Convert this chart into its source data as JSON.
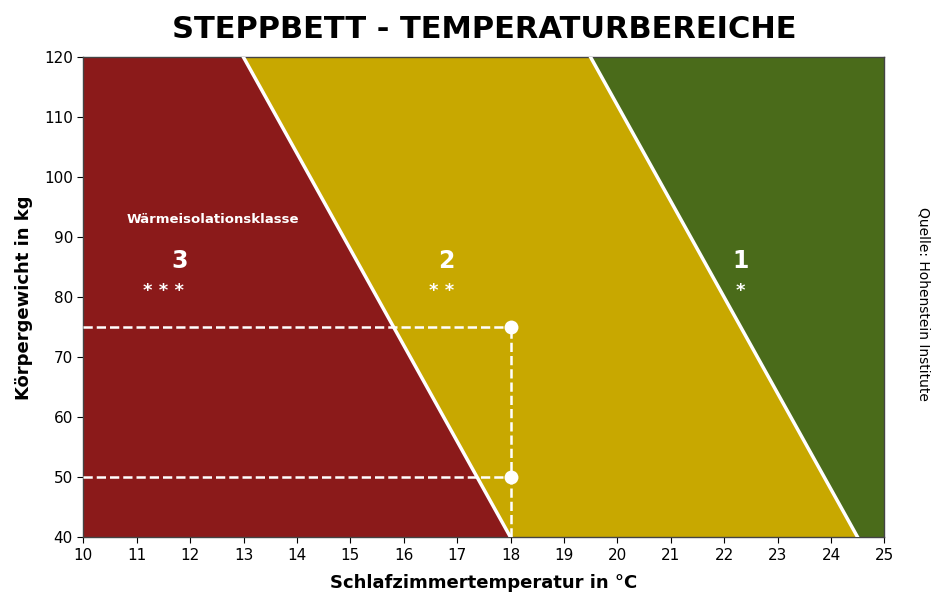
{
  "title": "STEPPBETT - TEMPERATURBEREICHE",
  "xlabel": "Schlafzimmertemperatur in °C",
  "ylabel": "Körpergewicht in kg",
  "right_label": "Quelle: Hohenstein Institute",
  "xlim": [
    10,
    25
  ],
  "ylim": [
    40,
    120
  ],
  "xticks": [
    10,
    11,
    12,
    13,
    14,
    15,
    16,
    17,
    18,
    19,
    20,
    21,
    22,
    23,
    24,
    25
  ],
  "yticks": [
    40,
    50,
    60,
    70,
    80,
    90,
    100,
    110,
    120
  ],
  "color_red": "#8B1A1A",
  "color_yellow": "#C8A800",
  "color_green": "#4A6B1A",
  "region_label": "Wärmeisolationsklasse",
  "class3_x": 11.8,
  "class3_y_num": 86,
  "class3_y_star": 81,
  "class3_num": "3",
  "class3_stars": "* * *",
  "class2_x": 16.8,
  "class2_y_num": 86,
  "class2_y_star": 81,
  "class2_num": "2",
  "class2_stars": "* *",
  "class1_x": 22.3,
  "class1_y_num": 86,
  "class1_y_star": 81,
  "class1_num": "1",
  "class1_stars": "*",
  "point1_x": 18,
  "point1_y": 75,
  "point2_x": 18,
  "point2_y": 50,
  "hline1_y": 75,
  "hline2_y": 50,
  "vline_x": 18,
  "b1_top_x": 13.0,
  "b1_top_y": 120,
  "b1_bot_x": 18.0,
  "b1_bot_y": 40,
  "b2_top_x": 19.5,
  "b2_top_y": 120,
  "b2_bot_x": 24.5,
  "b2_bot_y": 40,
  "background_color": "#ffffff",
  "title_fontsize": 22,
  "axis_label_fontsize": 13
}
